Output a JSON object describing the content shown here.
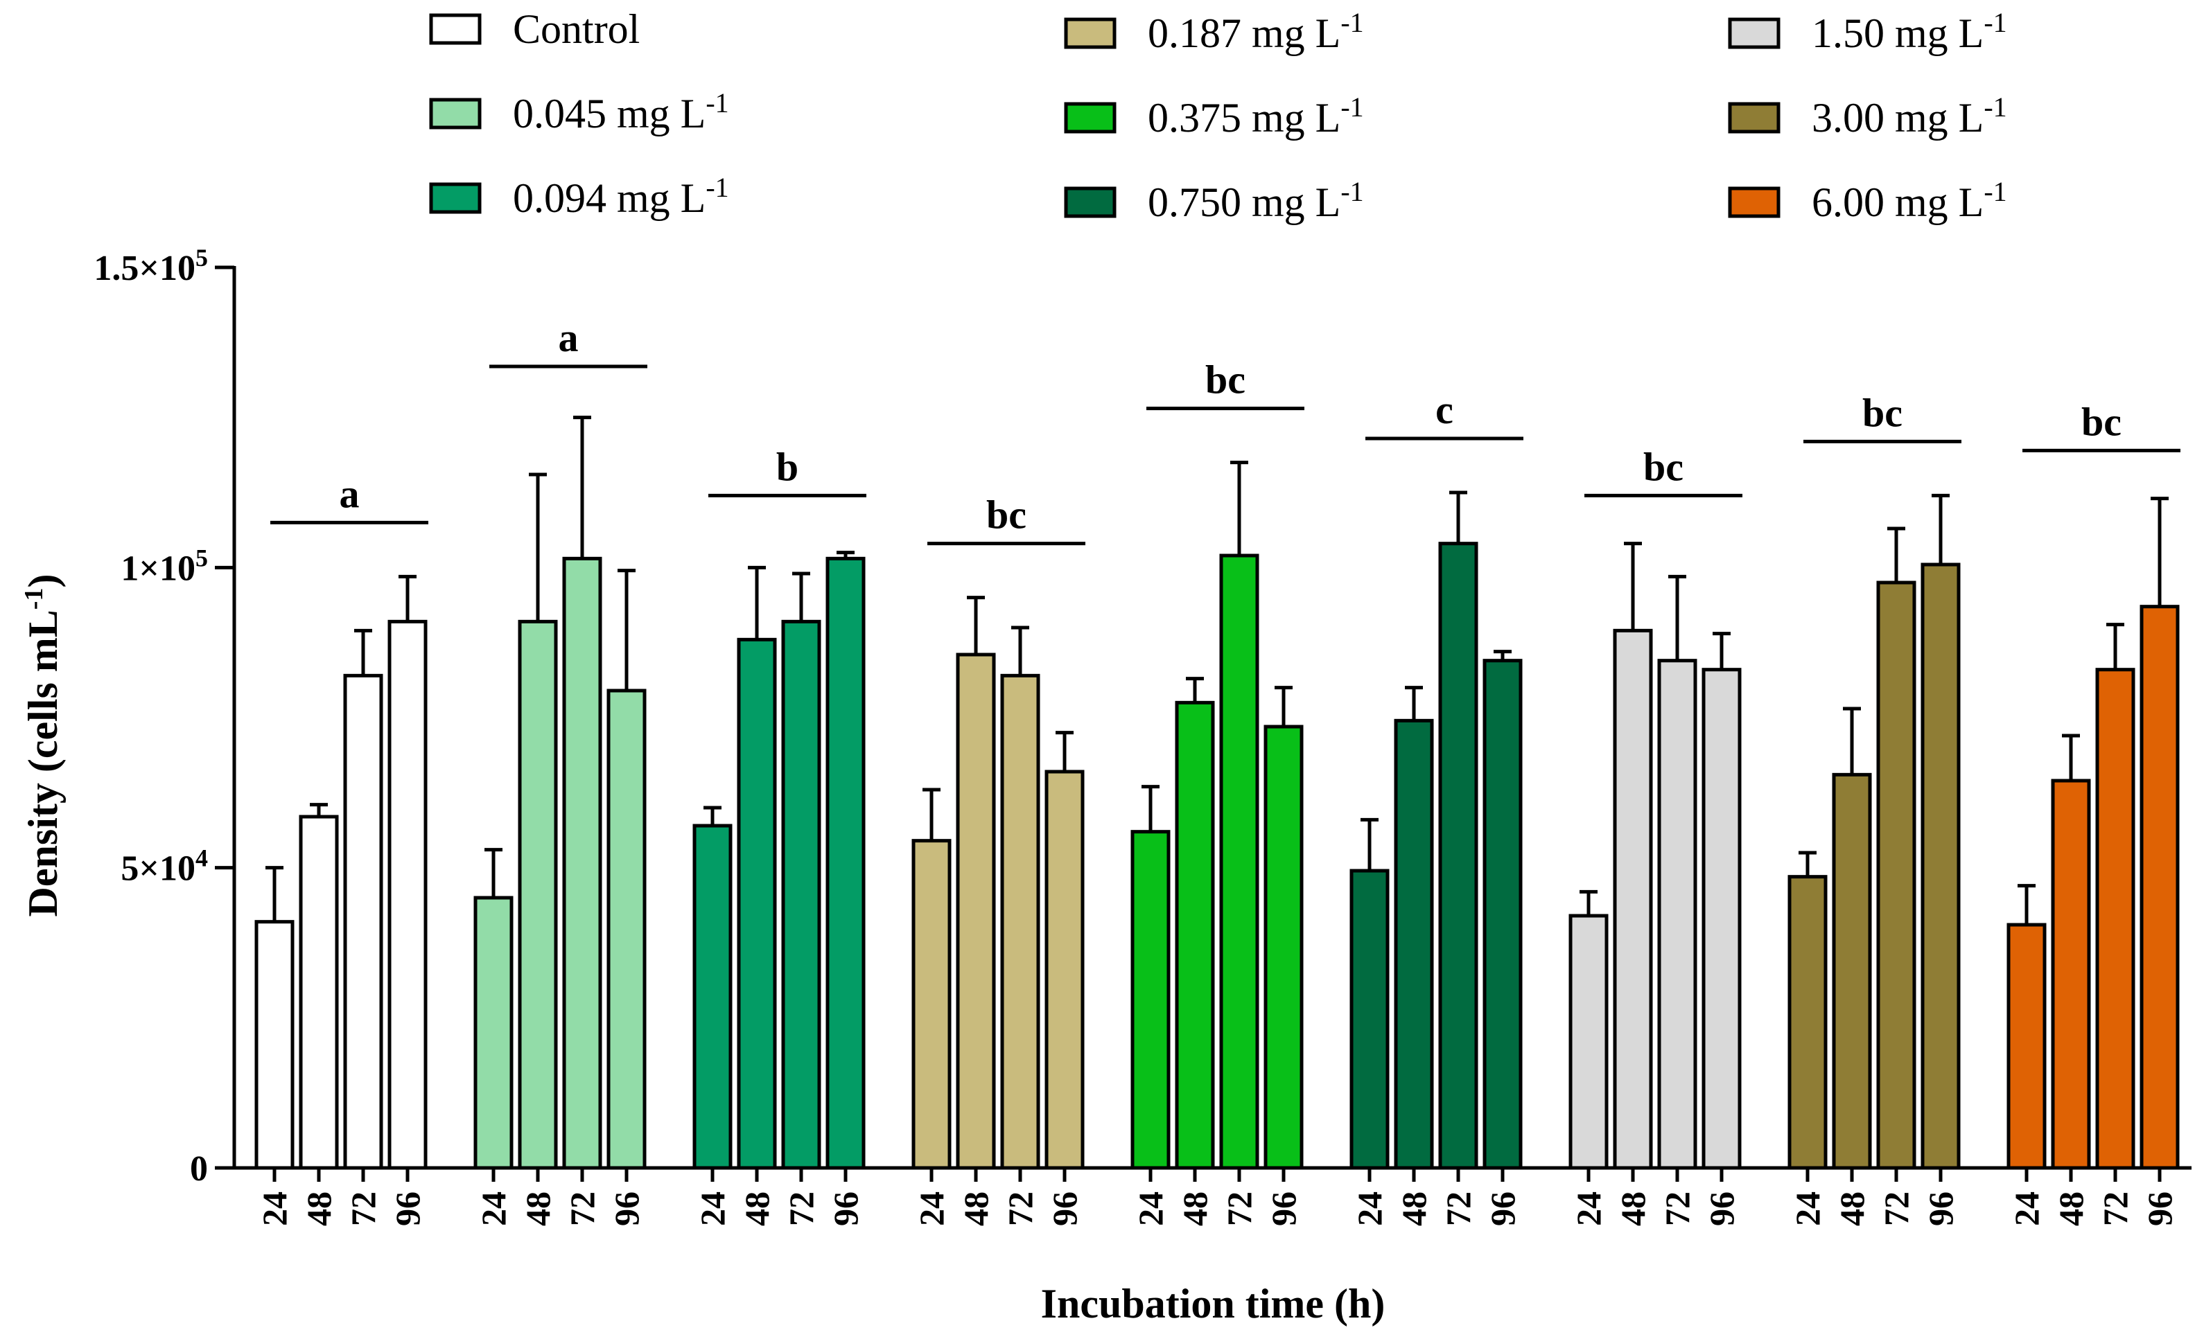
{
  "chart_data": {
    "type": "bar",
    "title": "",
    "xlabel": "Incubation time (h)",
    "ylabel": "Density (cells mL",
    "ylabel_superscript": "-1",
    "ylabel_close": ")",
    "ylim": [
      0,
      150000
    ],
    "y_ticks": [
      {
        "value": 0,
        "base": "0",
        "exp": ""
      },
      {
        "value": 50000,
        "base": "5×10",
        "exp": "4"
      },
      {
        "value": 100000,
        "base": "1×10",
        "exp": "5"
      },
      {
        "value": 150000,
        "base": "1.5×10",
        "exp": "5"
      }
    ],
    "time_labels": [
      "24",
      "48",
      "72",
      "96"
    ],
    "groups": [
      {
        "name": "Control",
        "sup": "",
        "color": "#ffffff",
        "sig": "a",
        "values": [
          41000,
          58500,
          82000,
          91000
        ],
        "errors": [
          9000,
          2000,
          7500,
          7500
        ]
      },
      {
        "name": "0.045 mg L",
        "sup": "-1",
        "color": "#92dca8",
        "sig": "a",
        "values": [
          45000,
          91000,
          101500,
          79500
        ],
        "errors": [
          8000,
          24500,
          23500,
          20000
        ]
      },
      {
        "name": "0.094 mg L",
        "sup": "-1",
        "color": "#039c65",
        "sig": "b",
        "values": [
          57000,
          88000,
          91000,
          101500
        ],
        "errors": [
          3000,
          12000,
          8000,
          1000
        ]
      },
      {
        "name": "0.187 mg L",
        "sup": "-1",
        "color": "#c9bb7d",
        "sig": "bc",
        "values": [
          54500,
          85500,
          82000,
          66000
        ],
        "errors": [
          8500,
          9500,
          8000,
          6500
        ]
      },
      {
        "name": "0.375 mg L",
        "sup": "-1",
        "color": "#08bf18",
        "sig": "bc",
        "values": [
          56000,
          77500,
          102000,
          73500
        ],
        "errors": [
          7500,
          4000,
          15500,
          6500
        ]
      },
      {
        "name": "0.750 mg L",
        "sup": "-1",
        "color": "#016b40",
        "sig": "c",
        "values": [
          49500,
          74500,
          104000,
          84500
        ],
        "errors": [
          8500,
          5500,
          8500,
          1500
        ]
      },
      {
        "name": "1.50 mg L",
        "sup": "-1",
        "color": "#d9d9d9",
        "sig": "bc",
        "values": [
          42000,
          89500,
          84500,
          83000
        ],
        "errors": [
          4000,
          14500,
          14000,
          6000
        ]
      },
      {
        "name": "3.00 mg L",
        "sup": "-1",
        "color": "#8f7d35",
        "sig": "bc",
        "values": [
          48500,
          65500,
          97500,
          100500
        ],
        "errors": [
          4000,
          11000,
          9000,
          11500
        ]
      },
      {
        "name": "6.00 mg L",
        "sup": "-1",
        "color": "#df6204",
        "sig": "bc",
        "values": [
          40500,
          64500,
          83000,
          93500
        ],
        "errors": [
          6500,
          7500,
          7500,
          18000
        ]
      }
    ],
    "sig_line_values": [
      107500,
      133500,
      112000,
      104000,
      126500,
      121500,
      112000,
      121000,
      119500
    ],
    "legend_position": "top",
    "grid": false
  }
}
